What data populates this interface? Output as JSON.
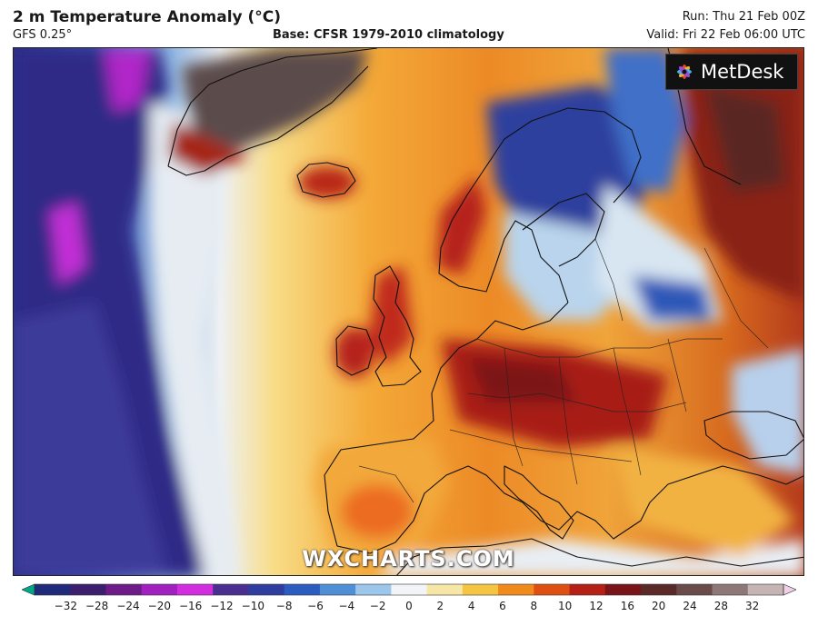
{
  "header": {
    "title": "2 m Temperature Anomaly (°C)",
    "model": "GFS 0.25°",
    "base": "Base: CFSR 1979-2010 climatology",
    "run": "Run: Thu 21 Feb 00Z",
    "valid": "Valid: Fri 22 Feb 06:00 UTC"
  },
  "logo": {
    "text": "MetDesk",
    "icon": "metdesk-flower-icon"
  },
  "watermark": "WXCHARTS.COM",
  "colorbar": {
    "ticks": [
      "−32",
      "−28",
      "−24",
      "−20",
      "−16",
      "−12",
      "−10",
      "−8",
      "−6",
      "−4",
      "−2",
      "0",
      "2",
      "4",
      "6",
      "8",
      "10",
      "12",
      "16",
      "20",
      "24",
      "28",
      "32"
    ],
    "colors": [
      "#00a88a",
      "#1f2a7a",
      "#3b1e6e",
      "#6e1b8a",
      "#a020c0",
      "#d22ee0",
      "#4a2f90",
      "#2e3e9e",
      "#2d5cc0",
      "#4f8fd6",
      "#9cc6ea",
      "#f2f4f7",
      "#f7e7a6",
      "#f5c542",
      "#f08a1c",
      "#e04f12",
      "#b52016",
      "#7a1418",
      "#5a2a28",
      "#6b4b4a",
      "#8e7877",
      "#c4b4b4",
      "#f0d0e8"
    ]
  }
}
